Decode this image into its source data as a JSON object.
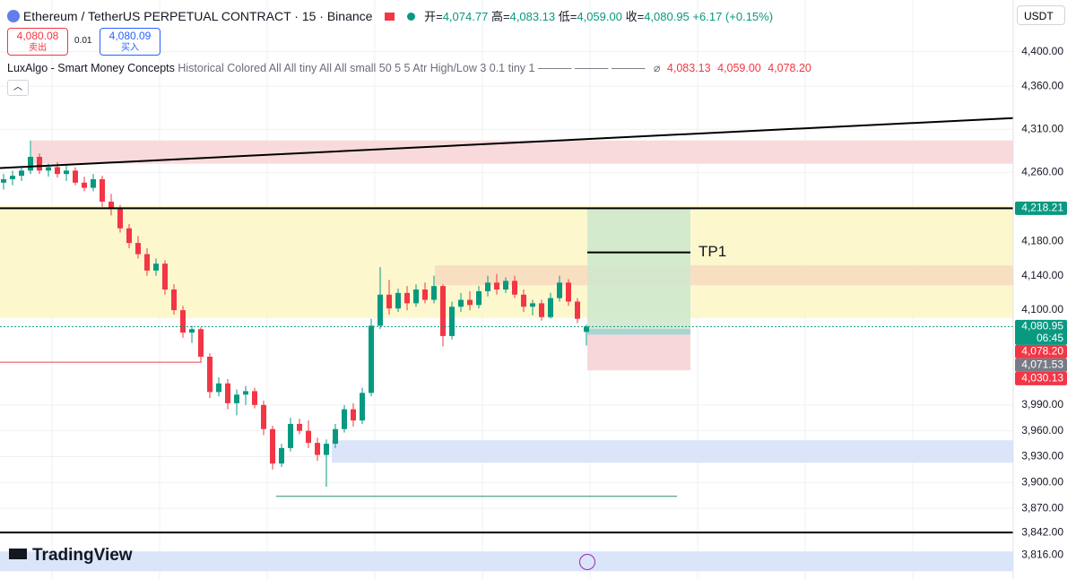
{
  "header": {
    "symbol": "Ethereum / TetherUS PERPETUAL CONTRACT · 15 · Binance",
    "open_label": "开=",
    "open": "4,074.77",
    "high_label": "高=",
    "high": "4,083.13",
    "low_label": "低=",
    "low": "4,059.00",
    "close_label": "收=",
    "close": "4,080.95",
    "change": "+6.17 (+0.15%)",
    "sell_price": "4,080.08",
    "sell": "卖出",
    "spread": "0.01",
    "buy_price": "4,080.09",
    "buy": "买入",
    "currency": "USDT",
    "indicator_name": "LuxAlgo - Smart Money Concepts",
    "indicator_params": "Historical Colored All All tiny All All small 50 5 5 Atr High/Low 3 0.1 tiny 1 ——— ——— ———",
    "indicator_symbol": "⌀",
    "indicator_values": [
      "4,083.13",
      "4,059.00",
      "4,078.20"
    ],
    "brand": "TradingView"
  },
  "chart_data": {
    "type": "candlestick",
    "up_color": "#089981",
    "down_color": "#f23645",
    "ylim": [
      3788,
      4460
    ],
    "yticks": [
      {
        "value": 4400,
        "label": "4,400.00"
      },
      {
        "value": 4360,
        "label": "4,360.00"
      },
      {
        "value": 4310,
        "label": "4,310.00"
      },
      {
        "value": 4260,
        "label": "4,260.00"
      },
      {
        "value": 4180,
        "label": "4,180.00"
      },
      {
        "value": 4140,
        "label": "4,140.00"
      },
      {
        "value": 4100,
        "label": "4,100.00"
      },
      {
        "value": 3990,
        "label": "3,990.00"
      },
      {
        "value": 3960,
        "label": "3,960.00"
      },
      {
        "value": 3930,
        "label": "3,930.00"
      },
      {
        "value": 3900,
        "label": "3,900.00"
      },
      {
        "value": 3870,
        "label": "3,870.00"
      },
      {
        "value": 3842,
        "label": "3,842.00"
      },
      {
        "value": 3816,
        "label": "3,816.00"
      }
    ],
    "ohlc": [
      [
        4248,
        4258,
        4240,
        4252
      ],
      [
        4252,
        4262,
        4245,
        4256
      ],
      [
        4256,
        4265,
        4250,
        4262
      ],
      [
        4262,
        4297,
        4258,
        4278
      ],
      [
        4278,
        4282,
        4258,
        4262
      ],
      [
        4262,
        4270,
        4255,
        4266
      ],
      [
        4266,
        4272,
        4254,
        4258
      ],
      [
        4258,
        4268,
        4250,
        4262
      ],
      [
        4262,
        4266,
        4245,
        4248
      ],
      [
        4248,
        4255,
        4238,
        4242
      ],
      [
        4242,
        4258,
        4238,
        4252
      ],
      [
        4252,
        4256,
        4220,
        4226
      ],
      [
        4226,
        4235,
        4210,
        4218
      ],
      [
        4218,
        4222,
        4190,
        4195
      ],
      [
        4195,
        4200,
        4172,
        4178
      ],
      [
        4178,
        4186,
        4160,
        4165
      ],
      [
        4165,
        4172,
        4140,
        4146
      ],
      [
        4146,
        4160,
        4140,
        4154
      ],
      [
        4154,
        4158,
        4118,
        4124
      ],
      [
        4124,
        4130,
        4095,
        4100
      ],
      [
        4100,
        4105,
        4068,
        4074
      ],
      [
        4074,
        4082,
        4062,
        4078
      ],
      [
        4078,
        4080,
        4040,
        4046
      ],
      [
        4046,
        4050,
        3998,
        4005
      ],
      [
        4005,
        4022,
        4000,
        4015
      ],
      [
        4015,
        4020,
        3985,
        3992
      ],
      [
        3992,
        4008,
        3978,
        4002
      ],
      [
        4002,
        4012,
        3990,
        4006
      ],
      [
        4006,
        4010,
        3986,
        3990
      ],
      [
        3990,
        3995,
        3955,
        3962
      ],
      [
        3962,
        3966,
        3915,
        3922
      ],
      [
        3922,
        3945,
        3918,
        3940
      ],
      [
        3940,
        3975,
        3936,
        3968
      ],
      [
        3968,
        3974,
        3956,
        3960
      ],
      [
        3960,
        3972,
        3940,
        3946
      ],
      [
        3946,
        3952,
        3925,
        3932
      ],
      [
        3932,
        3950,
        3895,
        3945
      ],
      [
        3945,
        3968,
        3940,
        3962
      ],
      [
        3962,
        3990,
        3958,
        3985
      ],
      [
        3985,
        3992,
        3965,
        3972
      ],
      [
        3972,
        4010,
        3968,
        4004
      ],
      [
        4004,
        4090,
        4000,
        4082
      ],
      [
        4082,
        4150,
        4078,
        4118
      ],
      [
        4118,
        4135,
        4095,
        4102
      ],
      [
        4102,
        4125,
        4098,
        4120
      ],
      [
        4120,
        4128,
        4100,
        4108
      ],
      [
        4108,
        4130,
        4104,
        4124
      ],
      [
        4124,
        4132,
        4108,
        4112
      ],
      [
        4112,
        4140,
        4108,
        4128
      ],
      [
        4128,
        4130,
        4058,
        4070
      ],
      [
        4070,
        4110,
        4066,
        4104
      ],
      [
        4104,
        4120,
        4098,
        4112
      ],
      [
        4112,
        4122,
        4100,
        4106
      ],
      [
        4106,
        4128,
        4102,
        4122
      ],
      [
        4122,
        4140,
        4116,
        4132
      ],
      [
        4132,
        4142,
        4118,
        4124
      ],
      [
        4124,
        4138,
        4120,
        4134
      ],
      [
        4134,
        4140,
        4114,
        4118
      ],
      [
        4118,
        4124,
        4098,
        4104
      ],
      [
        4104,
        4112,
        4094,
        4108
      ],
      [
        4108,
        4112,
        4088,
        4092
      ],
      [
        4092,
        4120,
        4090,
        4114
      ],
      [
        4114,
        4140,
        4110,
        4132
      ],
      [
        4132,
        4136,
        4105,
        4110
      ],
      [
        4110,
        4114,
        4085,
        4090
      ],
      [
        4074.77,
        4083.13,
        4059,
        4080.95
      ]
    ],
    "zones": [
      {
        "from": 3.1,
        "to": 112.6,
        "top": 4297,
        "bottom": 4270,
        "color": "#f7d6d8"
      },
      {
        "from": -0.4,
        "to": 112.6,
        "top": 4221,
        "bottom": 4091,
        "color": "#fcf6c8"
      },
      {
        "from": 48.1,
        "to": 112.6,
        "top": 4152,
        "bottom": 4129,
        "color": "#f7dcc0"
      },
      {
        "from": 36.6,
        "to": 112.6,
        "top": 3949,
        "bottom": 3923,
        "color": "#d6e2fa"
      },
      {
        "from": -0.4,
        "to": 112.6,
        "top": 3820,
        "bottom": 3797,
        "color": "#d6e2fa"
      },
      {
        "from": 65.1,
        "to": 76.6,
        "top": 4218.21,
        "bottom": 4078.2,
        "color": "#cfe8cd"
      },
      {
        "from": 65.1,
        "to": 76.6,
        "top": 4078.2,
        "bottom": 4071.53,
        "color": "#9fcfcf"
      },
      {
        "from": 65.1,
        "to": 76.6,
        "top": 4071.53,
        "bottom": 4030.13,
        "color": "#f7d3d6"
      }
    ],
    "lines": [
      {
        "from": [
          -0.4,
          4265
        ],
        "to": [
          112.6,
          4323
        ],
        "color": "#000000",
        "width": 2
      },
      {
        "from": [
          -0.4,
          4218.21
        ],
        "to": [
          112.6,
          4218.21
        ],
        "color": "#000000",
        "width": 2
      },
      {
        "from": [
          -0.4,
          3842
        ],
        "to": [
          112.6,
          3842
        ],
        "color": "#000000",
        "width": 2
      },
      {
        "from": [
          65.1,
          4167
        ],
        "to": [
          76.6,
          4167
        ],
        "color": "#000000",
        "width": 2
      },
      {
        "from": [
          -0.4,
          4039.6
        ],
        "to": [
          22.1,
          4039.6
        ],
        "color": "#e0474f",
        "width": 1
      },
      {
        "from": [
          30.4,
          3884
        ],
        "to": [
          75.1,
          3884
        ],
        "color": "#2e8b6e",
        "width": 1
      },
      {
        "from": [
          -0.4,
          4080.95
        ],
        "to": [
          112.6,
          4080.95
        ],
        "color": "#089981",
        "width": 1
      }
    ],
    "annotations": [
      {
        "text": "TP1",
        "x": 77.5,
        "y": 4167
      }
    ],
    "price_labels": [
      {
        "value": 4218.21,
        "label": "4,218.21",
        "color": "#089981"
      },
      {
        "value": 4080.95,
        "label": "4,080.95",
        "sublabel": "06:45",
        "color": "#089981"
      },
      {
        "value": 4078.2,
        "label": "4,078.20",
        "color": "#f23645"
      },
      {
        "value": 4071.53,
        "label": "4,071.53",
        "color": "#787b86"
      },
      {
        "value": 4030.13,
        "label": "4,030.13",
        "color": "#f23645"
      }
    ]
  }
}
